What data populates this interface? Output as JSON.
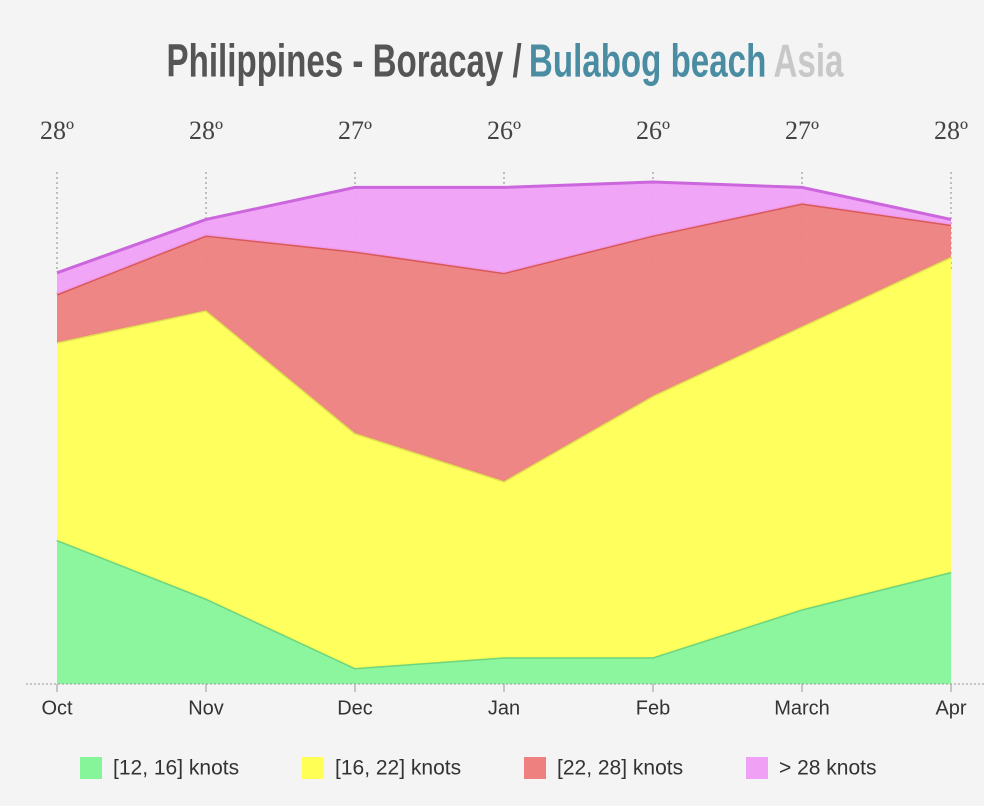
{
  "chart_data": {
    "type": "stacked-area",
    "title_parts": [
      "Philippines - Boracay /",
      "Bulabog beach",
      "Asia"
    ],
    "title_colors": [
      "#555555",
      "#4a8da3",
      "#c8c8c8"
    ],
    "categories": [
      "Oct",
      "Nov",
      "Dec",
      "Jan",
      "Feb",
      "March",
      "Apr"
    ],
    "top_labels": [
      "28º",
      "28º",
      "27º",
      "26º",
      "26º",
      "27º",
      "28º"
    ],
    "ylim": [
      0,
      100
    ],
    "series": [
      {
        "name": "[12, 16] knots",
        "color": "#86f59a",
        "values": [
          27,
          16,
          3,
          5,
          5,
          14,
          21
        ]
      },
      {
        "name": "[16, 22] knots",
        "color": "#ffff55",
        "values": [
          37,
          54,
          44,
          33,
          49,
          53,
          59
        ]
      },
      {
        "name": "[22, 28] knots",
        "color": "#ee8080",
        "values": [
          9,
          14,
          34,
          39,
          30,
          23,
          6
        ]
      },
      {
        "name": "> 28 knots",
        "color": "#f0a0f5",
        "values": [
          4,
          3,
          12,
          16,
          10,
          3,
          1
        ]
      }
    ],
    "stroke_colors": [
      "#6fd47f",
      "#e0e050",
      "#d95959",
      "#cc66dd"
    ]
  }
}
